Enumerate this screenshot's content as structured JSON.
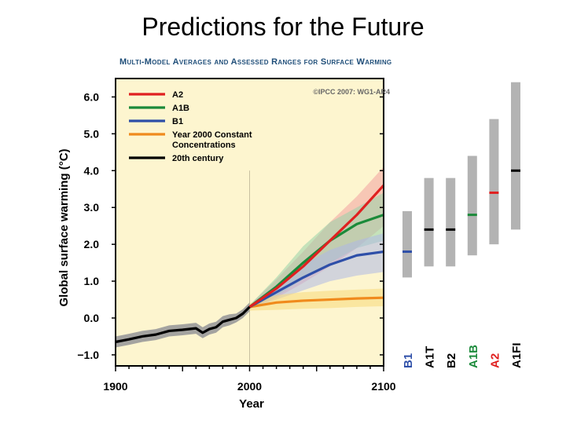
{
  "slide": {
    "title": "Predictions for the Future"
  },
  "chart_data": {
    "type": "line",
    "subtitle": "Multi-Model Averages and Assessed Ranges for Surface Warming",
    "copyright": "©IPCC 2007: WG1-AR4",
    "xlabel": "Year",
    "ylabel": "Global surface warming (°C)",
    "xlim": [
      1900,
      2100
    ],
    "ylim": [
      -1.3,
      6.5
    ],
    "x_ticks": [
      "1900",
      "2000",
      "2100"
    ],
    "y_ticks": [
      "6.0",
      "5.0",
      "4.0",
      "3.0",
      "2.0",
      "1.0",
      "0.0",
      "−1.0"
    ],
    "legend_placement": "top-left",
    "background_color": "#fdf5cf",
    "series": [
      {
        "name": "A2",
        "color": "#e02020",
        "band_color": "#f2a0a0",
        "x": [
          2000,
          2020,
          2040,
          2060,
          2080,
          2100
        ],
        "values": [
          0.3,
          0.8,
          1.4,
          2.1,
          2.8,
          3.6
        ],
        "lower": [
          0.25,
          0.55,
          0.95,
          1.4,
          1.9,
          2.5
        ],
        "upper": [
          0.35,
          1.05,
          1.8,
          2.6,
          3.3,
          4.1
        ]
      },
      {
        "name": "A1B",
        "color": "#1b8a3a",
        "band_color": "#98d2aa",
        "x": [
          2000,
          2020,
          2040,
          2060,
          2080,
          2100
        ],
        "values": [
          0.3,
          0.85,
          1.5,
          2.1,
          2.55,
          2.8
        ],
        "lower": [
          0.25,
          0.6,
          1.05,
          1.5,
          1.9,
          2.1
        ],
        "upper": [
          0.35,
          1.1,
          1.95,
          2.6,
          3.0,
          3.4
        ]
      },
      {
        "name": "B1",
        "color": "#2e4fa8",
        "band_color": "#aeb8e6",
        "x": [
          2000,
          2020,
          2040,
          2060,
          2080,
          2100
        ],
        "values": [
          0.3,
          0.7,
          1.1,
          1.45,
          1.7,
          1.8
        ],
        "lower": [
          0.25,
          0.5,
          0.75,
          1.0,
          1.15,
          1.25
        ],
        "upper": [
          0.35,
          0.9,
          1.45,
          1.85,
          2.1,
          2.3
        ]
      },
      {
        "name": "Year 2000 Constant Concentrations",
        "legend_lines": [
          "Year 2000 Constant",
          "Concentrations"
        ],
        "color": "#f08a1c",
        "band_color": "#f7d97a",
        "x": [
          2000,
          2020,
          2040,
          2060,
          2080,
          2100
        ],
        "values": [
          0.3,
          0.42,
          0.47,
          0.5,
          0.53,
          0.55
        ],
        "lower": [
          0.2,
          0.22,
          0.25,
          0.27,
          0.3,
          0.32
        ],
        "upper": [
          0.4,
          0.62,
          0.7,
          0.74,
          0.77,
          0.8
        ]
      },
      {
        "name": "20th century",
        "color": "#000000",
        "band_color": "#9a9a9a",
        "x": [
          1900,
          1910,
          1920,
          1930,
          1940,
          1950,
          1960,
          1965,
          1970,
          1975,
          1980,
          1985,
          1990,
          1995,
          2000
        ],
        "values": [
          -0.65,
          -0.58,
          -0.5,
          -0.45,
          -0.35,
          -0.32,
          -0.28,
          -0.4,
          -0.3,
          -0.25,
          -0.1,
          -0.05,
          0.0,
          0.12,
          0.3
        ],
        "lower": [
          -0.8,
          -0.73,
          -0.65,
          -0.6,
          -0.5,
          -0.47,
          -0.43,
          -0.55,
          -0.45,
          -0.4,
          -0.25,
          -0.2,
          -0.12,
          0.0,
          0.18
        ],
        "upper": [
          -0.5,
          -0.43,
          -0.35,
          -0.3,
          -0.2,
          -0.17,
          -0.13,
          -0.25,
          -0.15,
          -0.1,
          0.05,
          0.1,
          0.12,
          0.24,
          0.42
        ]
      }
    ],
    "likely_ranges": [
      {
        "scenario": "B1",
        "low": 1.1,
        "high": 2.9,
        "best": 1.8,
        "label_color": "#2e4fa8",
        "bar_color": "#2e4fa8"
      },
      {
        "scenario": "A1T",
        "low": 1.4,
        "high": 3.8,
        "best": 2.4,
        "label_color": "#000000",
        "bar_color": "#000000"
      },
      {
        "scenario": "B2",
        "low": 1.4,
        "high": 3.8,
        "best": 2.4,
        "label_color": "#000000",
        "bar_color": "#000000"
      },
      {
        "scenario": "A1B",
        "low": 1.7,
        "high": 4.4,
        "best": 2.8,
        "label_color": "#1b8a3a",
        "bar_color": "#1b8a3a"
      },
      {
        "scenario": "A2",
        "low": 2.0,
        "high": 5.4,
        "best": 3.4,
        "label_color": "#e02020",
        "bar_color": "#e02020"
      },
      {
        "scenario": "A1FI",
        "low": 2.4,
        "high": 6.4,
        "best": 4.0,
        "label_color": "#000000",
        "bar_color": "#000000"
      }
    ]
  }
}
